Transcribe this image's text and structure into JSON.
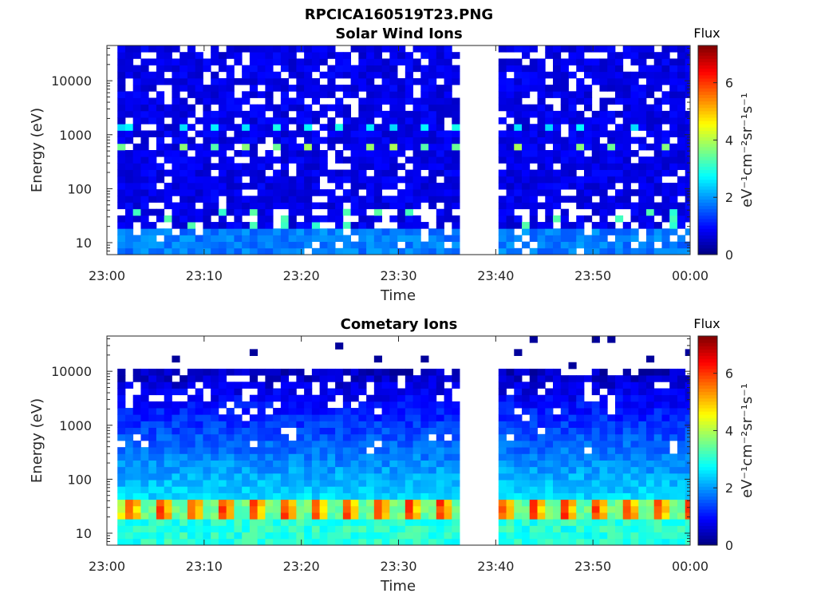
{
  "figure_title": "RPCICA160519T23.PNG",
  "chart_data": [
    {
      "type": "heatmap",
      "title": "Solar Wind Ions",
      "xlabel": "Time",
      "ylabel": "Energy (eV)",
      "x_range": [
        "23:00",
        "00:00"
      ],
      "x_tick_labels": [
        "23:00",
        "23:10",
        "23:20",
        "23:30",
        "23:40",
        "23:50",
        "00:00"
      ],
      "y_scale": "log",
      "y_range": [
        6,
        45000
      ],
      "y_tick_values": [
        10,
        100,
        1000,
        10000
      ],
      "y_tick_labels": [
        "10",
        "100",
        "1000",
        "10000"
      ],
      "data_gap": [
        "23:36:40",
        "23:39:40"
      ],
      "data_start": "23:01:05",
      "data_end": "23:59:55",
      "colorbar": {
        "title": "Flux",
        "label": "eV⁻¹cm⁻²sr⁻¹s⁻¹",
        "range": [
          0,
          7.3
        ],
        "tick_labels": [
          "0",
          "2",
          "4",
          "6"
        ],
        "colormap": "jet"
      },
      "features": [
        {
          "description": "periodic enhanced flux near 600 eV",
          "energy_eV": 600,
          "level": 3.2,
          "period_min": 3.1
        },
        {
          "description": "periodic enhanced flux near 1500 eV",
          "energy_eV": 1500,
          "level": 2.4,
          "period_min": 3.1
        },
        {
          "description": "moderate flux at lowest energies",
          "energy_range_eV": [
            6,
            20
          ],
          "level": 1.8
        },
        {
          "description": "background flux",
          "level": 0.5
        }
      ]
    },
    {
      "type": "heatmap",
      "title": "Cometary Ions",
      "xlabel": "Time",
      "ylabel": "Energy (eV)",
      "x_range": [
        "23:00",
        "00:00"
      ],
      "x_tick_labels": [
        "23:00",
        "23:10",
        "23:20",
        "23:30",
        "23:40",
        "23:50",
        "00:00"
      ],
      "y_scale": "log",
      "y_range": [
        6,
        45000
      ],
      "y_tick_values": [
        10,
        100,
        1000,
        10000
      ],
      "y_tick_labels": [
        "10",
        "100",
        "1000",
        "10000"
      ],
      "data_gap": [
        "23:36:40",
        "23:39:40"
      ],
      "data_start": "23:01:05",
      "data_end": "23:59:55",
      "colorbar": {
        "title": "Flux",
        "label": "eV⁻¹cm⁻²sr⁻¹s⁻¹",
        "range": [
          0,
          7.3
        ],
        "tick_labels": [
          "0",
          "2",
          "4",
          "6"
        ],
        "colormap": "jet"
      },
      "features": [
        {
          "description": "periodic peak flux near 30 eV",
          "energy_range_eV": [
            20,
            45
          ],
          "level": 5.8,
          "period_min": 3.2
        },
        {
          "description": "high flux band at lowest energies",
          "energy_range_eV": [
            6,
            20
          ],
          "level": 3.0
        },
        {
          "description": "flux decreasing with energy",
          "energy_range_eV": [
            45,
            11000
          ],
          "level": [
            2.5,
            0.4
          ]
        }
      ]
    }
  ]
}
